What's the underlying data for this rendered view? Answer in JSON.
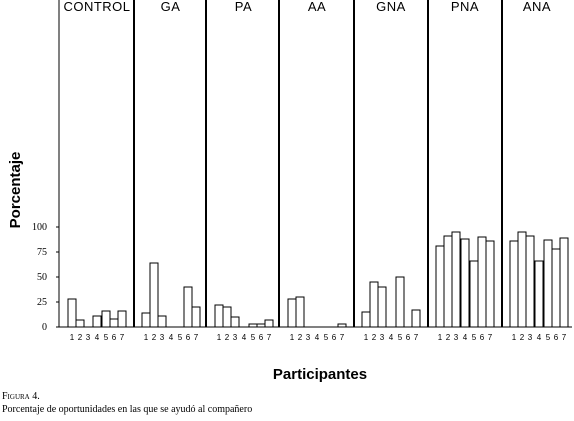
{
  "chart_data": {
    "type": "bar",
    "ylabel": "Porcentaje",
    "xlabel": "Participantes",
    "ylim": [
      0,
      110
    ],
    "yticks": [
      {
        "value": 0,
        "label": "0"
      },
      {
        "value": 25,
        "label": "25"
      },
      {
        "value": 50,
        "label": "50"
      },
      {
        "value": 75,
        "label": "75"
      },
      {
        "value": 100,
        "label": "100"
      }
    ],
    "grid": false,
    "groups": [
      {
        "name": "CONTROL",
        "participants": [
          "1",
          "2",
          "3",
          "4",
          "5",
          "6",
          "7"
        ],
        "values": [
          28,
          7,
          0,
          11,
          16,
          8,
          16
        ]
      },
      {
        "name": "GA",
        "participants": [
          "1",
          "2",
          "3",
          "4",
          "5",
          "6",
          "7"
        ],
        "values": [
          14,
          64,
          11,
          0,
          0,
          40,
          20
        ]
      },
      {
        "name": "PA",
        "participants": [
          "1",
          "2",
          "3",
          "4",
          "5",
          "6",
          "7"
        ],
        "values": [
          22,
          20,
          10,
          0,
          3,
          3,
          7
        ]
      },
      {
        "name": "AA",
        "participants": [
          "1",
          "2",
          "3",
          "4",
          "5",
          "6",
          "7"
        ],
        "values": [
          28,
          30,
          0,
          0,
          0,
          0,
          3
        ]
      },
      {
        "name": "GNA",
        "participants": [
          "1",
          "2",
          "3",
          "4",
          "5",
          "6",
          "7"
        ],
        "values": [
          15,
          45,
          40,
          0,
          50,
          0,
          17
        ]
      },
      {
        "name": "PNA",
        "participants": [
          "1",
          "2",
          "3",
          "4",
          "5",
          "6",
          "7"
        ],
        "values": [
          81,
          91,
          95,
          88,
          66,
          90,
          86
        ]
      },
      {
        "name": "ANA",
        "participants": [
          "1",
          "2",
          "3",
          "4",
          "5",
          "6",
          "7"
        ],
        "values": [
          86,
          95,
          91,
          66,
          87,
          78,
          89
        ]
      }
    ]
  },
  "caption": {
    "figure_label": "Figura 4.",
    "text": "Porcentaje de oportunidades en las que se ayudó al compañero"
  }
}
